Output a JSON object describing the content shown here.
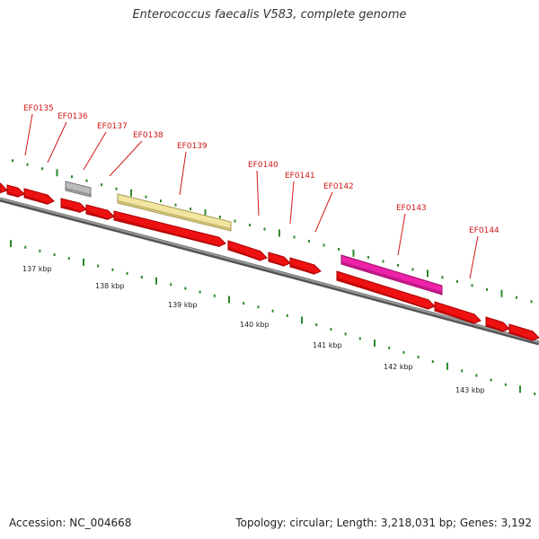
{
  "title": "Enterococcus faecalis V583, complete genome",
  "footer": {
    "accession": "Accession: NC_004668",
    "summary": "Topology: circular; Length: 3,218,031 bp; Genes: 3,192"
  },
  "colors": {
    "gene": "#ee1111",
    "gene_dark": "#aa0000",
    "pseudo": "#bbbbbb",
    "rna": "#f0e6a0",
    "rna_dark": "#a89a50",
    "special": "#ee22aa",
    "backbone": "#777777",
    "tick": "#2a8a2a",
    "label": "#d01818"
  },
  "genes": [
    {
      "name": "EF0135"
    },
    {
      "name": "EF0136"
    },
    {
      "name": "EF0137"
    },
    {
      "name": "EF0138"
    },
    {
      "name": "EF0139"
    },
    {
      "name": "EF0140"
    },
    {
      "name": "EF0141"
    },
    {
      "name": "EF0142"
    },
    {
      "name": "EF0143"
    },
    {
      "name": "EF0144"
    }
  ],
  "kbp_ticks": [
    "137 kbp",
    "138 kbp",
    "139 kbp",
    "140 kbp",
    "141 kbp",
    "142 kbp",
    "143 kbp"
  ]
}
